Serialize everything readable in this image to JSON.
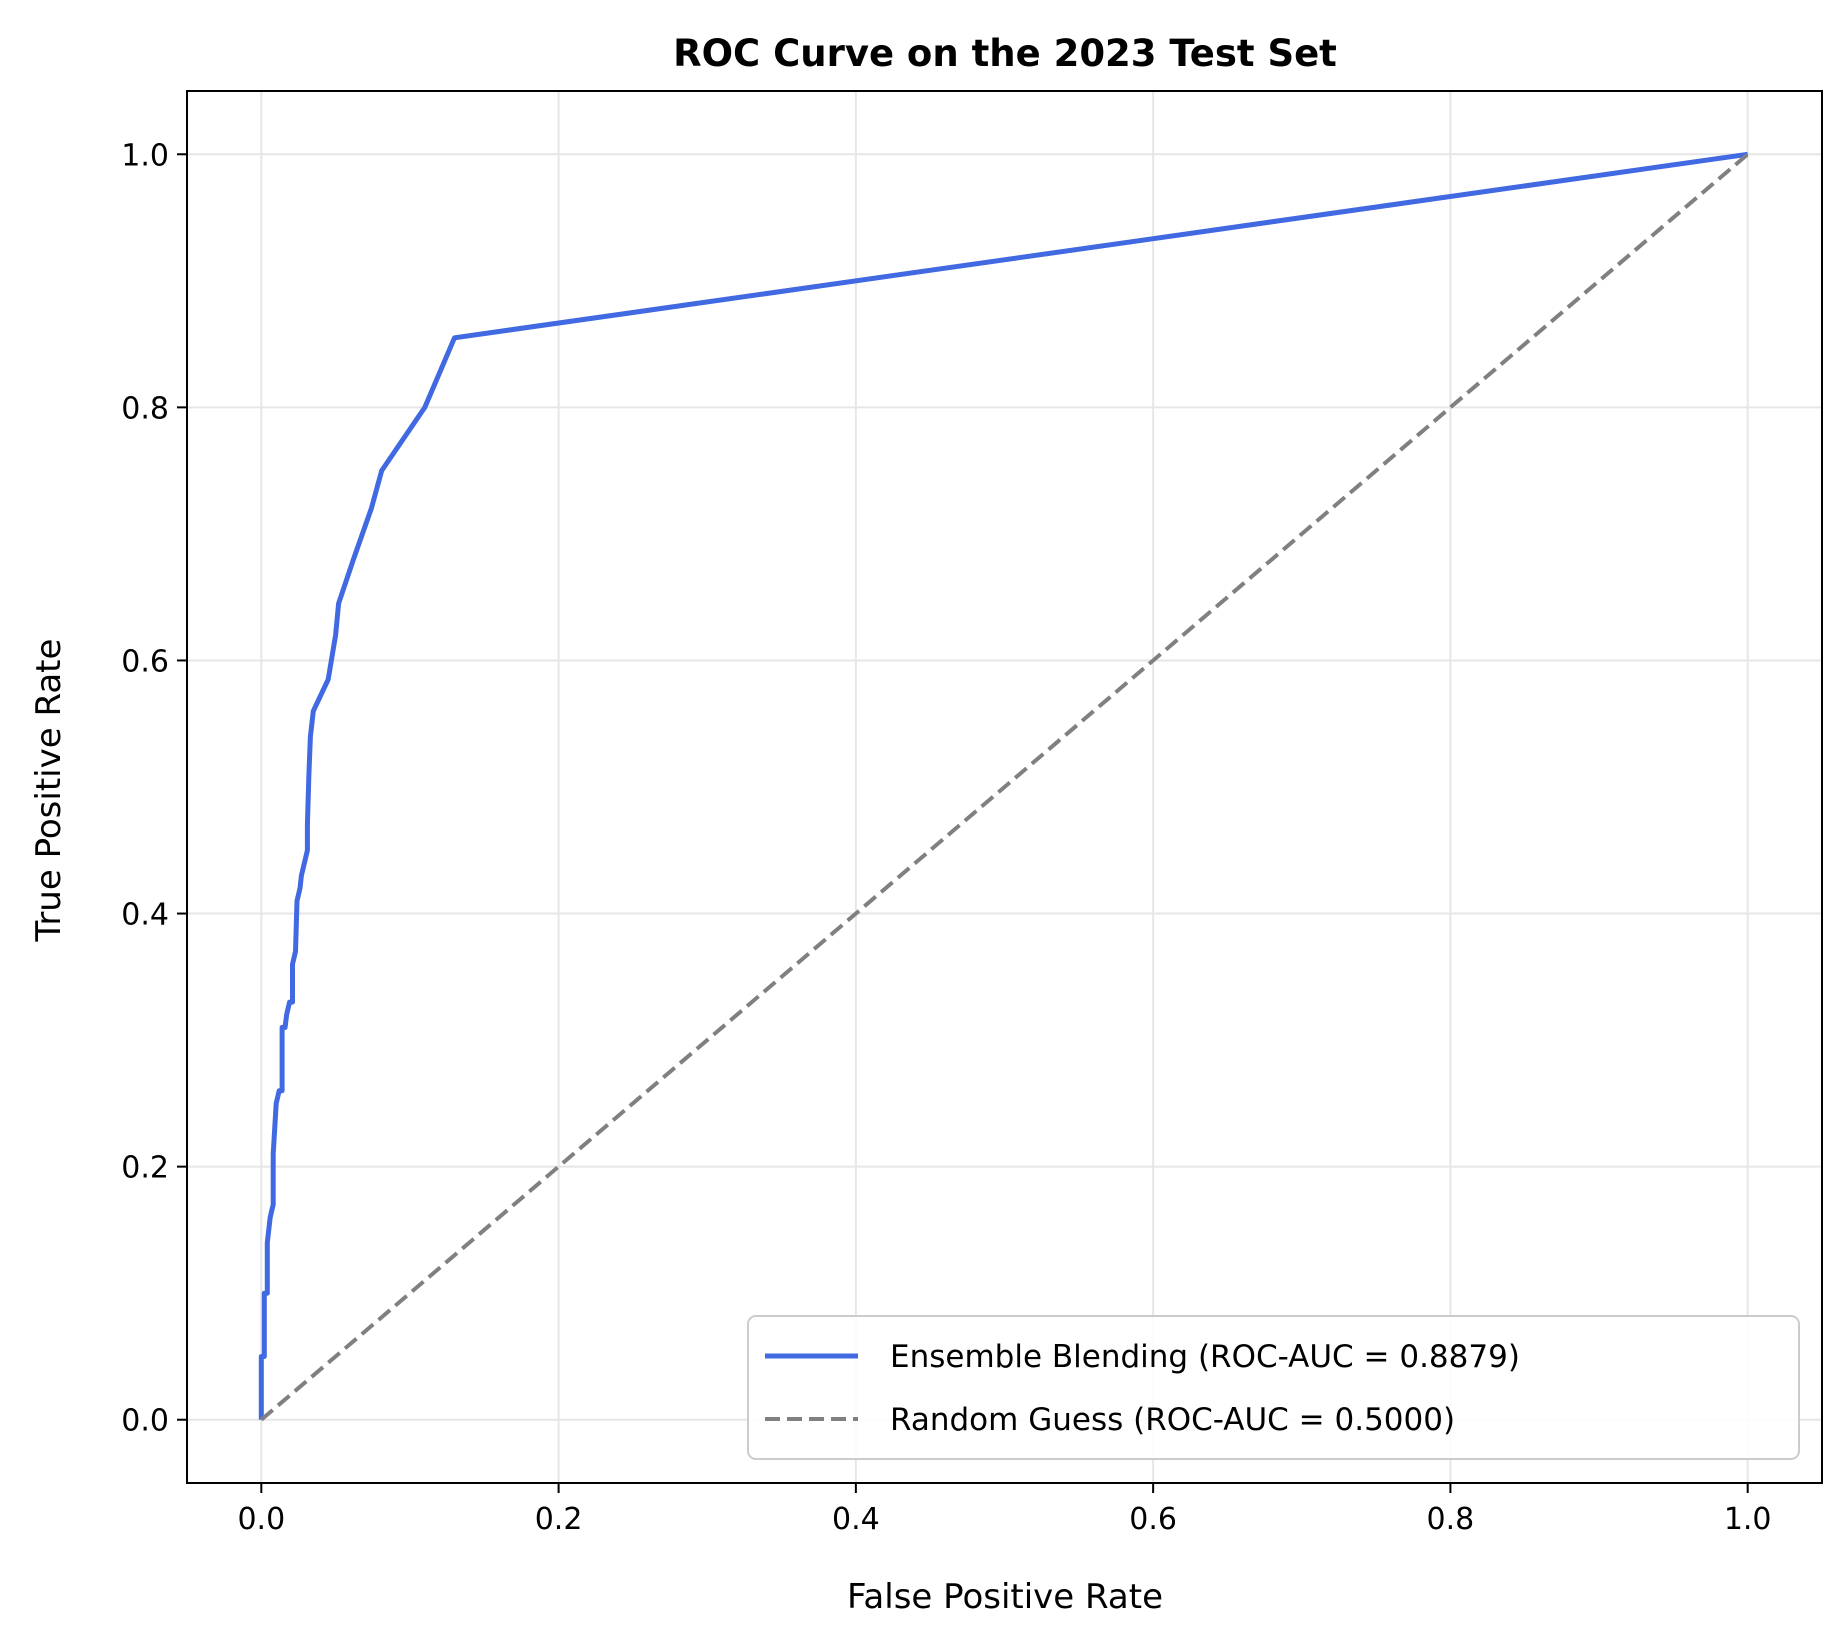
{
  "chart_data": {
    "type": "line",
    "title": "ROC Curve on the 2023 Test Set",
    "xlabel": "False Positive Rate",
    "ylabel": "True Positive Rate",
    "xlim": [
      -0.05,
      1.05
    ],
    "ylim": [
      -0.05,
      1.05
    ],
    "xticks": [
      "0.0",
      "0.2",
      "0.4",
      "0.6",
      "0.8",
      "1.0"
    ],
    "yticks": [
      "0.0",
      "0.2",
      "0.4",
      "0.6",
      "0.8",
      "1.0"
    ],
    "grid": true,
    "legend_position": "lower right",
    "series": [
      {
        "name": "Ensemble Blending (ROC-AUC = 0.8879)",
        "color": "#4169E1",
        "style": "solid",
        "points": [
          [
            0.0,
            0.0
          ],
          [
            0.0,
            0.05
          ],
          [
            0.002,
            0.05
          ],
          [
            0.002,
            0.1
          ],
          [
            0.004,
            0.1
          ],
          [
            0.004,
            0.14
          ],
          [
            0.006,
            0.16
          ],
          [
            0.008,
            0.17
          ],
          [
            0.008,
            0.21
          ],
          [
            0.01,
            0.25
          ],
          [
            0.012,
            0.26
          ],
          [
            0.014,
            0.26
          ],
          [
            0.014,
            0.31
          ],
          [
            0.016,
            0.31
          ],
          [
            0.017,
            0.32
          ],
          [
            0.019,
            0.33
          ],
          [
            0.021,
            0.33
          ],
          [
            0.021,
            0.36
          ],
          [
            0.023,
            0.37
          ],
          [
            0.024,
            0.41
          ],
          [
            0.026,
            0.42
          ],
          [
            0.027,
            0.43
          ],
          [
            0.029,
            0.44
          ],
          [
            0.031,
            0.45
          ],
          [
            0.031,
            0.47
          ],
          [
            0.032,
            0.51
          ],
          [
            0.033,
            0.54
          ],
          [
            0.035,
            0.56
          ],
          [
            0.045,
            0.585
          ],
          [
            0.05,
            0.62
          ],
          [
            0.052,
            0.645
          ],
          [
            0.062,
            0.68
          ],
          [
            0.074,
            0.72
          ],
          [
            0.081,
            0.75
          ],
          [
            0.11,
            0.8
          ],
          [
            0.13,
            0.855
          ],
          [
            1.0,
            1.0
          ]
        ]
      },
      {
        "name": "Random Guess (ROC-AUC = 0.5000)",
        "color": "#808080",
        "style": "dashed",
        "points": [
          [
            0.0,
            0.0
          ],
          [
            1.0,
            1.0
          ]
        ]
      }
    ]
  }
}
